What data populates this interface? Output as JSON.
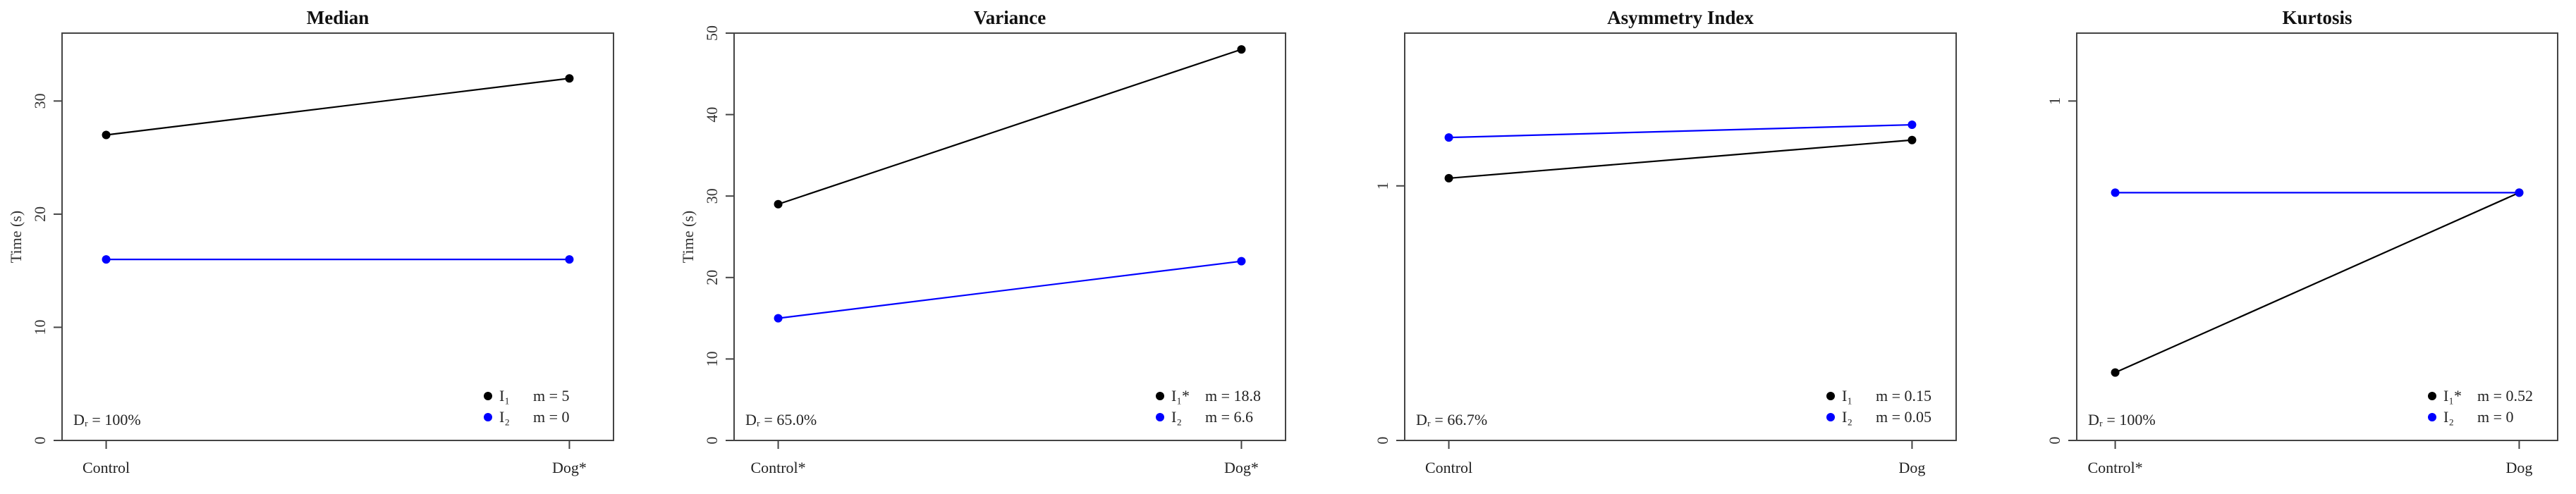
{
  "chart_data": [
    {
      "type": "line",
      "title": "Median",
      "ylabel": "Time (s)",
      "ylim": [
        0,
        36
      ],
      "yticks": [
        0,
        10,
        20,
        30
      ],
      "categories": [
        "Control",
        "Dog*"
      ],
      "series": [
        {
          "name": "I1",
          "color": "#000000",
          "values": [
            27,
            32
          ]
        },
        {
          "name": "I2",
          "color": "#0000ff",
          "values": [
            16,
            16
          ]
        }
      ],
      "dr_label": "Dᵣ = 100%",
      "legend": [
        {
          "label": "I₁",
          "m": "m = 5",
          "color": "#000000"
        },
        {
          "label": "I₂",
          "m": "m = 0",
          "color": "#0000ff"
        }
      ],
      "legend_position": "bottom-right"
    },
    {
      "type": "line",
      "title": "Variance",
      "ylabel": "Time (s)",
      "ylim": [
        0,
        50
      ],
      "yticks": [
        0,
        10,
        20,
        30,
        40,
        50
      ],
      "categories": [
        "Control*",
        "Dog*"
      ],
      "series": [
        {
          "name": "I1*",
          "color": "#000000",
          "values": [
            29,
            48
          ]
        },
        {
          "name": "I2",
          "color": "#0000ff",
          "values": [
            15,
            22
          ]
        }
      ],
      "dr_label": "Dᵣ = 65.0%",
      "legend": [
        {
          "label": "I₁*",
          "m": "m = 18.8",
          "color": "#000000"
        },
        {
          "label": "I₂",
          "m": "m = 6.6",
          "color": "#0000ff"
        }
      ],
      "legend_position": "bottom-right"
    },
    {
      "type": "line",
      "title": "Asymmetry Index",
      "ylabel": "",
      "ylim": [
        0,
        1.6
      ],
      "yticks": [
        0,
        1
      ],
      "categories": [
        "Control",
        "Dog"
      ],
      "series": [
        {
          "name": "I1",
          "color": "#000000",
          "values": [
            1.03,
            1.18
          ]
        },
        {
          "name": "I2",
          "color": "#0000ff",
          "values": [
            1.19,
            1.24
          ]
        }
      ],
      "dr_label": "Dᵣ = 66.7%",
      "legend": [
        {
          "label": "I₁",
          "m": "m = 0.15",
          "color": "#000000"
        },
        {
          "label": "I₂",
          "m": "m = 0.05",
          "color": "#0000ff"
        }
      ],
      "legend_position": "bottom-right"
    },
    {
      "type": "line",
      "title": "Kurtosis",
      "ylabel": "",
      "ylim": [
        0,
        1.2
      ],
      "yticks": [
        0,
        1
      ],
      "categories": [
        "Control*",
        "Dog"
      ],
      "series": [
        {
          "name": "I1*",
          "color": "#000000",
          "values": [
            0.2,
            0.73
          ]
        },
        {
          "name": "I2",
          "color": "#0000ff",
          "values": [
            0.73,
            0.73
          ]
        }
      ],
      "dr_label": "Dᵣ = 100%",
      "legend": [
        {
          "label": "I₁*",
          "m": "m = 0.52",
          "color": "#000000"
        },
        {
          "label": "I₂",
          "m": "m = 0",
          "color": "#0000ff"
        }
      ],
      "legend_position": "bottom-right"
    }
  ]
}
